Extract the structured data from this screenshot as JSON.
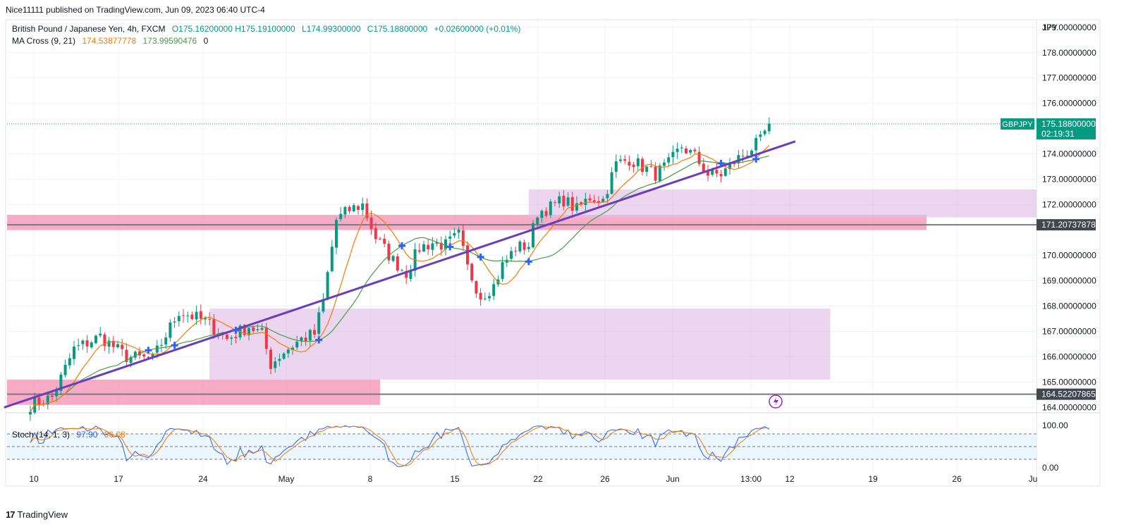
{
  "header": {
    "publisher_line": "Nice11111 published on TradingView.com, Jun 09, 2023 06:40 UTC-4",
    "symbol_desc": "British Pound / Japanese Yen, 4h, FXCM",
    "open": "O175.16200000",
    "high": "H175.19100000",
    "low": "L174.99300000",
    "close": "C175.18800000",
    "change": "+0.02600000 (+0.01%)"
  },
  "indicators": {
    "ma_label": "MA Cross (9, 21)",
    "ma_fast_value": "174.53877778",
    "ma_slow_value": "173.99590476",
    "ma_extra": "0",
    "stoch_label": "Stoch (14, 1, 3)",
    "stoch_k_value": "97.90",
    "stoch_d_value": "96.08"
  },
  "price_axis": {
    "currency": "JPY",
    "ticks": [
      "179.00000000",
      "178.00000000",
      "177.00000000",
      "176.00000000",
      "174.00000000",
      "173.00000000",
      "172.00000000",
      "170.00000000",
      "169.00000000",
      "168.00000000",
      "167.00000000",
      "166.00000000",
      "165.00000000",
      "164.00000000"
    ],
    "tick_values": [
      179,
      178,
      177,
      176,
      174,
      173,
      172,
      170,
      169,
      168,
      167,
      166,
      165,
      164
    ],
    "current_symbol": "GBPJPY",
    "current_price": "175.18800000",
    "countdown": "02:19:31",
    "level_upper": "171.20737878",
    "level_lower": "164.52207865"
  },
  "stoch_axis": {
    "ticks": [
      "100.00",
      "0.00"
    ]
  },
  "time_axis": {
    "labels": [
      "10",
      "17",
      "24",
      "May",
      "8",
      "15",
      "22",
      "26",
      "Jun",
      "13:00",
      "12",
      "19",
      "26",
      "Ju"
    ]
  },
  "footer": {
    "brand": "TradingView"
  },
  "colors": {
    "bull": "#089981",
    "bear": "#f23645",
    "ma_fast": "#f57c00",
    "ma_slow": "#43a047",
    "trendline": "#6a3dbd",
    "supply_zone": "#f48fb1",
    "demand_zone": "#e1bee7",
    "stoch_k": "#2962ff",
    "stoch_d": "#f57c00"
  },
  "chart_data": {
    "type": "candlestick",
    "timeframe": "4h",
    "ylim": [
      163.9,
      179.3
    ],
    "stoch_ylim": [
      0,
      100
    ],
    "anchor_closes": [
      [
        0,
        164.1
      ],
      [
        5,
        164.4
      ],
      [
        10,
        166.3
      ],
      [
        16,
        166.8
      ],
      [
        22,
        166.0
      ],
      [
        28,
        165.9
      ],
      [
        34,
        167.8
      ],
      [
        40,
        167.4
      ],
      [
        45,
        166.7
      ],
      [
        50,
        167.2
      ],
      [
        53,
        166.9
      ],
      [
        55,
        165.7
      ],
      [
        58,
        166.2
      ],
      [
        62,
        166.7
      ],
      [
        65,
        166.9
      ],
      [
        67,
        168.2
      ],
      [
        70,
        171.4
      ],
      [
        73,
        171.8
      ],
      [
        76,
        172.0
      ],
      [
        79,
        170.7
      ],
      [
        83,
        169.8
      ],
      [
        86,
        169.3
      ],
      [
        89,
        170.3
      ],
      [
        92,
        170.5
      ],
      [
        95,
        170.4
      ],
      [
        98,
        170.8
      ],
      [
        100,
        169.5
      ],
      [
        103,
        168.4
      ],
      [
        106,
        168.8
      ],
      [
        108,
        169.6
      ],
      [
        111,
        170.3
      ],
      [
        114,
        170.4
      ],
      [
        116,
        171.7
      ],
      [
        119,
        171.9
      ],
      [
        122,
        172.2
      ],
      [
        125,
        171.8
      ],
      [
        128,
        172.3
      ],
      [
        131,
        172.2
      ],
      [
        134,
        173.6
      ],
      [
        137,
        173.8
      ],
      [
        140,
        173.5
      ],
      [
        143,
        173.2
      ],
      [
        146,
        173.6
      ],
      [
        149,
        174.3
      ],
      [
        152,
        173.9
      ],
      [
        155,
        173.2
      ],
      [
        158,
        173.2
      ],
      [
        161,
        173.7
      ],
      [
        164,
        174.1
      ],
      [
        167,
        174.5
      ],
      [
        169,
        175.2
      ]
    ],
    "trendline": {
      "start": [
        -6,
        164.0
      ],
      "end": [
        175,
        174.5
      ]
    },
    "zones": [
      {
        "kind": "supply",
        "from_bar": -999,
        "to_bar": 205,
        "y_top": 171.6,
        "y_bottom": 171.0,
        "line": 171.2074
      },
      {
        "kind": "supply",
        "from_bar": -999,
        "to_bar": 80,
        "y_top": 165.1,
        "y_bottom": 164.1,
        "line": 164.5221
      },
      {
        "kind": "demand",
        "from_bar": 41,
        "to_bar": 183,
        "y_top": 167.9,
        "y_bottom": 165.1
      },
      {
        "kind": "demand",
        "from_bar": 114,
        "to_bar": 999,
        "y_top": 172.6,
        "y_bottom": 171.5
      }
    ],
    "current_price": 175.188
  }
}
